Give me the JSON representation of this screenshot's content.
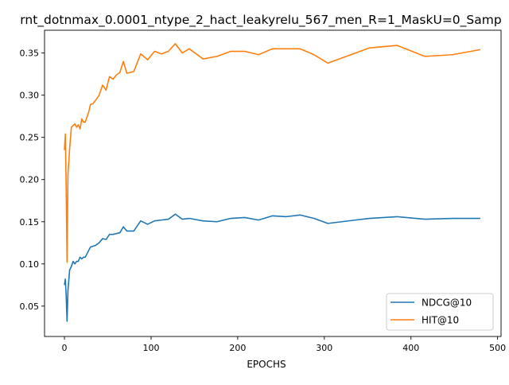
{
  "chart_data": {
    "type": "line",
    "title": "rnt_dotnmax_0.0001_ntype_2_hact_leakyrelu_567_men_R=1_MaskU=0_Samp",
    "xlabel": "EPOCHS",
    "ylabel": "",
    "xlim": [
      -23,
      504
    ],
    "ylim": [
      0.014,
      0.377
    ],
    "xticks": [
      0,
      100,
      200,
      300,
      400,
      500
    ],
    "yticks": [
      0.05,
      0.1,
      0.15,
      0.2,
      0.25,
      0.3,
      0.35
    ],
    "ytick_labels": [
      "0.05",
      "0.10",
      "0.15",
      "0.20",
      "0.25",
      "0.30",
      "0.35"
    ],
    "grid": false,
    "legend_position": "lower-right",
    "series": [
      {
        "name": "NDCG@10",
        "color": "#1f77b4",
        "x": [
          0,
          1,
          2,
          3,
          4,
          6,
          8,
          10,
          12,
          14,
          16,
          18,
          20,
          22,
          24,
          26,
          28,
          30,
          33,
          36,
          40,
          44,
          48,
          52,
          56,
          60,
          64,
          68,
          72,
          80,
          88,
          96,
          104,
          112,
          120,
          128,
          136,
          144,
          160,
          176,
          192,
          208,
          224,
          240,
          256,
          272,
          288,
          304,
          320,
          336,
          352,
          384,
          416,
          448,
          480
        ],
        "y": [
          0.075,
          0.082,
          0.062,
          0.032,
          0.068,
          0.093,
          0.097,
          0.103,
          0.1,
          0.103,
          0.103,
          0.108,
          0.106,
          0.108,
          0.108,
          0.112,
          0.116,
          0.12,
          0.121,
          0.122,
          0.125,
          0.13,
          0.129,
          0.135,
          0.135,
          0.136,
          0.137,
          0.144,
          0.139,
          0.139,
          0.151,
          0.147,
          0.151,
          0.152,
          0.153,
          0.159,
          0.153,
          0.154,
          0.151,
          0.15,
          0.154,
          0.155,
          0.152,
          0.157,
          0.156,
          0.158,
          0.154,
          0.148,
          0.15,
          0.152,
          0.154,
          0.156,
          0.153,
          0.154,
          0.154
        ]
      },
      {
        "name": "HIT@10",
        "color": "#ff7f0e",
        "x": [
          0,
          1,
          2,
          3,
          4,
          6,
          8,
          10,
          12,
          14,
          16,
          18,
          20,
          22,
          24,
          26,
          28,
          30,
          33,
          36,
          40,
          44,
          48,
          52,
          56,
          60,
          64,
          68,
          72,
          80,
          88,
          96,
          104,
          112,
          120,
          128,
          136,
          144,
          160,
          176,
          192,
          208,
          224,
          240,
          256,
          272,
          288,
          304,
          320,
          336,
          352,
          384,
          416,
          448,
          480
        ],
        "y": [
          0.235,
          0.254,
          0.19,
          0.102,
          0.205,
          0.237,
          0.262,
          0.264,
          0.266,
          0.262,
          0.265,
          0.26,
          0.272,
          0.268,
          0.268,
          0.274,
          0.28,
          0.289,
          0.29,
          0.294,
          0.3,
          0.312,
          0.306,
          0.322,
          0.319,
          0.324,
          0.327,
          0.34,
          0.326,
          0.328,
          0.349,
          0.342,
          0.352,
          0.349,
          0.352,
          0.361,
          0.35,
          0.355,
          0.343,
          0.346,
          0.352,
          0.352,
          0.348,
          0.355,
          0.355,
          0.355,
          0.348,
          0.338,
          0.344,
          0.35,
          0.356,
          0.359,
          0.346,
          0.348,
          0.354
        ]
      }
    ]
  }
}
